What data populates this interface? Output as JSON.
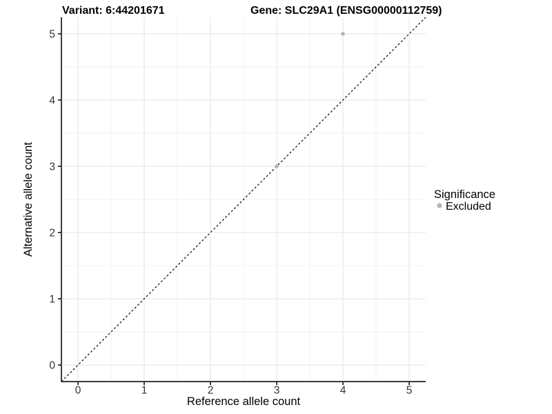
{
  "header": {
    "title_left": "Variant: 6:44201671",
    "title_right": "Gene: SLC29A1 (ENSG00000112759)"
  },
  "chart_data": {
    "type": "scatter",
    "title_left": "Variant: 6:44201671",
    "title_right": "Gene: SLC29A1 (ENSG00000112759)",
    "xlabel": "Reference allele count",
    "ylabel": "Alternative allele count",
    "xlim": [
      -0.25,
      5.25
    ],
    "ylim": [
      -0.25,
      5.25
    ],
    "x_ticks": [
      0,
      1,
      2,
      3,
      4,
      5
    ],
    "y_ticks": [
      0,
      1,
      2,
      3,
      4,
      5
    ],
    "grid": {
      "major": true,
      "minor": true
    },
    "points": [
      {
        "x": 4,
        "y": 5,
        "series": "Excluded"
      },
      {
        "x": 3,
        "y": 3,
        "series": "Excluded"
      }
    ],
    "identity_line": {
      "style": "dashed",
      "color": "#000000",
      "from": [
        -0.25,
        -0.25
      ],
      "to": [
        5.25,
        5.25
      ]
    },
    "legend": {
      "title": "Significance",
      "position": "right",
      "items": [
        {
          "label": "Excluded",
          "color": "#b5b5b5"
        }
      ]
    },
    "colors": {
      "point": "#b5b5b5",
      "grid_major": "#e3e3e3",
      "grid_minor": "#f1f1f1",
      "axis_line": "#3c3c3c",
      "tick_mark": "#3c3c3c",
      "tick_label": "#333333",
      "title": "#000000",
      "background": "#ffffff"
    }
  }
}
